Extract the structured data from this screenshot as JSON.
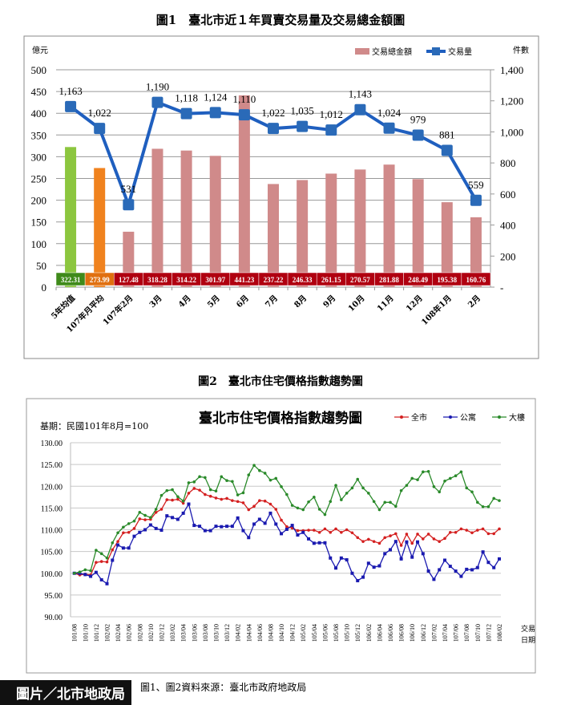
{
  "chart_data": [
    {
      "type": "bar+line",
      "title": "圖1　臺北市近１年買賣交易量及交易總金額圖",
      "ylabel_left": "億元",
      "ylabel_right": "件數",
      "ylim_left": [
        0,
        500
      ],
      "ylim_right": [
        0,
        1400
      ],
      "yticks_left": [
        "0",
        "50",
        "100",
        "150",
        "200",
        "250",
        "300",
        "350",
        "400",
        "450",
        "500"
      ],
      "yticks_right": [
        "-",
        "200",
        "400",
        "600",
        "800",
        "1,000",
        "1,200",
        "1,400"
      ],
      "legend_position": "top-right",
      "grid": true,
      "categories": [
        "5年均值",
        "107年月平均",
        "107年2月",
        "3月",
        "4月",
        "5月",
        "6月",
        "7月",
        "8月",
        "9月",
        "10月",
        "11月",
        "12月",
        "108年1月",
        "2月"
      ],
      "series": [
        {
          "name": "交易總金額",
          "type": "bar",
          "axis": "left",
          "color": "#d08a8a",
          "values": [
            322.31,
            273.99,
            127.48,
            318.28,
            314.22,
            301.97,
            441.23,
            237.22,
            246.33,
            261.15,
            270.57,
            281.88,
            248.49,
            195.38,
            160.76
          ],
          "labels": [
            "322.31",
            "273.99",
            "127.48",
            "318.28",
            "314.22",
            "301.97",
            "441.23",
            "237.22",
            "246.33",
            "261.15",
            "270.57",
            "281.88",
            "248.49",
            "195.38",
            "160.76"
          ],
          "bar_colors": [
            "#8cc63f",
            "#f0821e",
            "#d08a8a",
            "#d08a8a",
            "#d08a8a",
            "#d08a8a",
            "#d08a8a",
            "#d08a8a",
            "#d08a8a",
            "#d08a8a",
            "#d08a8a",
            "#d08a8a",
            "#d08a8a",
            "#d08a8a",
            "#d08a8a"
          ],
          "label_cell_colors": [
            "#3f8a1a",
            "#e07010",
            "#b00010",
            "#b00010",
            "#b00010",
            "#b00010",
            "#b00010",
            "#b00010",
            "#b00010",
            "#b00010",
            "#b00010",
            "#b00010",
            "#b00010",
            "#b00010",
            "#b00010"
          ]
        },
        {
          "name": "交易量",
          "type": "line",
          "axis": "right",
          "color": "#1f5fbf",
          "values": [
            1163,
            1022,
            531,
            1190,
            1118,
            1124,
            1110,
            1022,
            1035,
            1012,
            1143,
            1024,
            979,
            881,
            559
          ],
          "labels": [
            "1,163",
            "1,022",
            "531",
            "1,190",
            "1,118",
            "1,124",
            "1,110",
            "1,022",
            "1,035",
            "1,012",
            "1,143",
            "1,024",
            "979",
            "881",
            "559"
          ]
        }
      ]
    },
    {
      "type": "line",
      "caption": "圖2　臺北市住宅價格指數趨勢圖",
      "title": "臺北市住宅價格指數趨勢圖",
      "subtitle": "基期：民國101年8月=100",
      "xlabel": [
        "交易",
        "日期"
      ],
      "ylim": [
        90,
        130
      ],
      "yticks": [
        "90.00",
        "95.00",
        "100.00",
        "105.00",
        "110.00",
        "115.00",
        "120.00",
        "125.00",
        "130.00"
      ],
      "grid": true,
      "legend_position": "top-right",
      "x": [
        "101/08",
        "101/09",
        "101/10",
        "101/11",
        "101/12",
        "102/01",
        "102/02",
        "102/03",
        "102/04",
        "102/05",
        "102/06",
        "102/07",
        "102/08",
        "102/09",
        "102/10",
        "102/11",
        "102/12",
        "103/01",
        "103/02",
        "103/03",
        "103/04",
        "103/05",
        "103/06",
        "103/07",
        "103/08",
        "103/09",
        "103/10",
        "103/11",
        "103/12",
        "104/01",
        "104/02",
        "104/03",
        "104/04",
        "104/05",
        "104/06",
        "104/07",
        "104/08",
        "104/09",
        "104/10",
        "104/11",
        "104/12",
        "105/01",
        "105/02",
        "105/03",
        "105/04",
        "105/05",
        "105/06",
        "105/07",
        "105/08",
        "105/09",
        "105/10",
        "105/11",
        "105/12",
        "106/01",
        "106/02",
        "106/03",
        "106/04",
        "106/05",
        "106/06",
        "106/07",
        "106/08",
        "106/09",
        "106/10",
        "106/11",
        "106/12",
        "107/01",
        "107/02",
        "107/03",
        "107/04",
        "107/05",
        "107/06",
        "107/07",
        "107/08",
        "107/09",
        "107/10",
        "107/11",
        "107/12",
        "108/01",
        "108/02"
      ],
      "series": [
        {
          "name": "全市",
          "color": "#d42020",
          "values": [
            100,
            99.6,
            99.8,
            99.6,
            102.5,
            102.7,
            102.6,
            105.4,
            107.3,
            109.3,
            109.4,
            110.3,
            112.5,
            112.3,
            112.4,
            114,
            114.7,
            116.9,
            116.8,
            117,
            116.1,
            118.4,
            119.5,
            119.1,
            118.1,
            117.7,
            117.3,
            117,
            117.2,
            116.7,
            116.5,
            116.2,
            114.6,
            115.4,
            116.7,
            116.6,
            115.9,
            114.7,
            112.2,
            110.7,
            110.4,
            109.8,
            109.8,
            109.9,
            109.9,
            109.4,
            110.2,
            109.4,
            110.2,
            109.4,
            110.0,
            109.3,
            108.2,
            107.3,
            107.8,
            107.3,
            106.9,
            108.2,
            108.6,
            109.1,
            106.4,
            109.0,
            106.9,
            109.0,
            107.9,
            109.0,
            107.9,
            107.3,
            108.0,
            109.4,
            109.4,
            110.2,
            109.9,
            109.3,
            109.9,
            110.2,
            109.1,
            109.1,
            110.2
          ]
        },
        {
          "name": "公寓",
          "color": "#1a1ab0",
          "values": [
            100,
            100,
            99.7,
            99.3,
            100.2,
            98.5,
            97.6,
            103,
            106.5,
            105.8,
            105.8,
            108.5,
            109.4,
            110,
            111.1,
            110.3,
            109.9,
            113.2,
            112.8,
            112.4,
            113.8,
            115.9,
            111,
            110.8,
            109.8,
            109.8,
            110.8,
            110.7,
            110.8,
            110.8,
            112.7,
            109.8,
            108.2,
            111.3,
            112.4,
            111.5,
            113.8,
            111.3,
            109.1,
            110.1,
            111.0,
            108.8,
            109.4,
            107.9,
            106.9,
            107.0,
            107.0,
            103.5,
            101.2,
            103.5,
            103.1,
            100.0,
            98.3,
            99.1,
            102.3,
            101.4,
            101.7,
            104.5,
            105.4,
            107.3,
            103.3,
            107.2,
            103.7,
            107.2,
            104.5,
            100.5,
            98.6,
            100.8,
            103.0,
            101.6,
            100.5,
            99.3,
            100.9,
            100.8,
            101.3,
            104.9,
            102.5,
            101.3,
            103.3
          ]
        },
        {
          "name": "大樓",
          "color": "#2a8a2a",
          "values": [
            100,
            100.3,
            100.8,
            100.6,
            105.3,
            104.5,
            103.5,
            107,
            109.3,
            110.6,
            111.4,
            112,
            114,
            113.3,
            112.8,
            114.7,
            117.9,
            119,
            119.2,
            117.6,
            116.6,
            120.8,
            121,
            122.2,
            122,
            119.2,
            118.9,
            122.2,
            121.3,
            121.1,
            118,
            118.5,
            122.6,
            124.8,
            123.6,
            123,
            121.4,
            121.8,
            119.9,
            118.1,
            115.6,
            115.0,
            114.6,
            116.4,
            117.5,
            114.7,
            113.5,
            116.5,
            120.2,
            116.9,
            118.4,
            119.6,
            121.6,
            119.6,
            118.4,
            116.5,
            114.6,
            116.3,
            116.3,
            115.4,
            119.0,
            120.2,
            121.8,
            121.5,
            123.3,
            123.4,
            119.9,
            118.7,
            121.2,
            121.8,
            122.4,
            123.3,
            119.6,
            118.7,
            116.3,
            115.3,
            115.3,
            117.2,
            116.7
          ]
        }
      ]
    }
  ],
  "source": "圖1、圖2資料來源：臺北市政府地政局",
  "watermark": "圖片／北市地政局"
}
